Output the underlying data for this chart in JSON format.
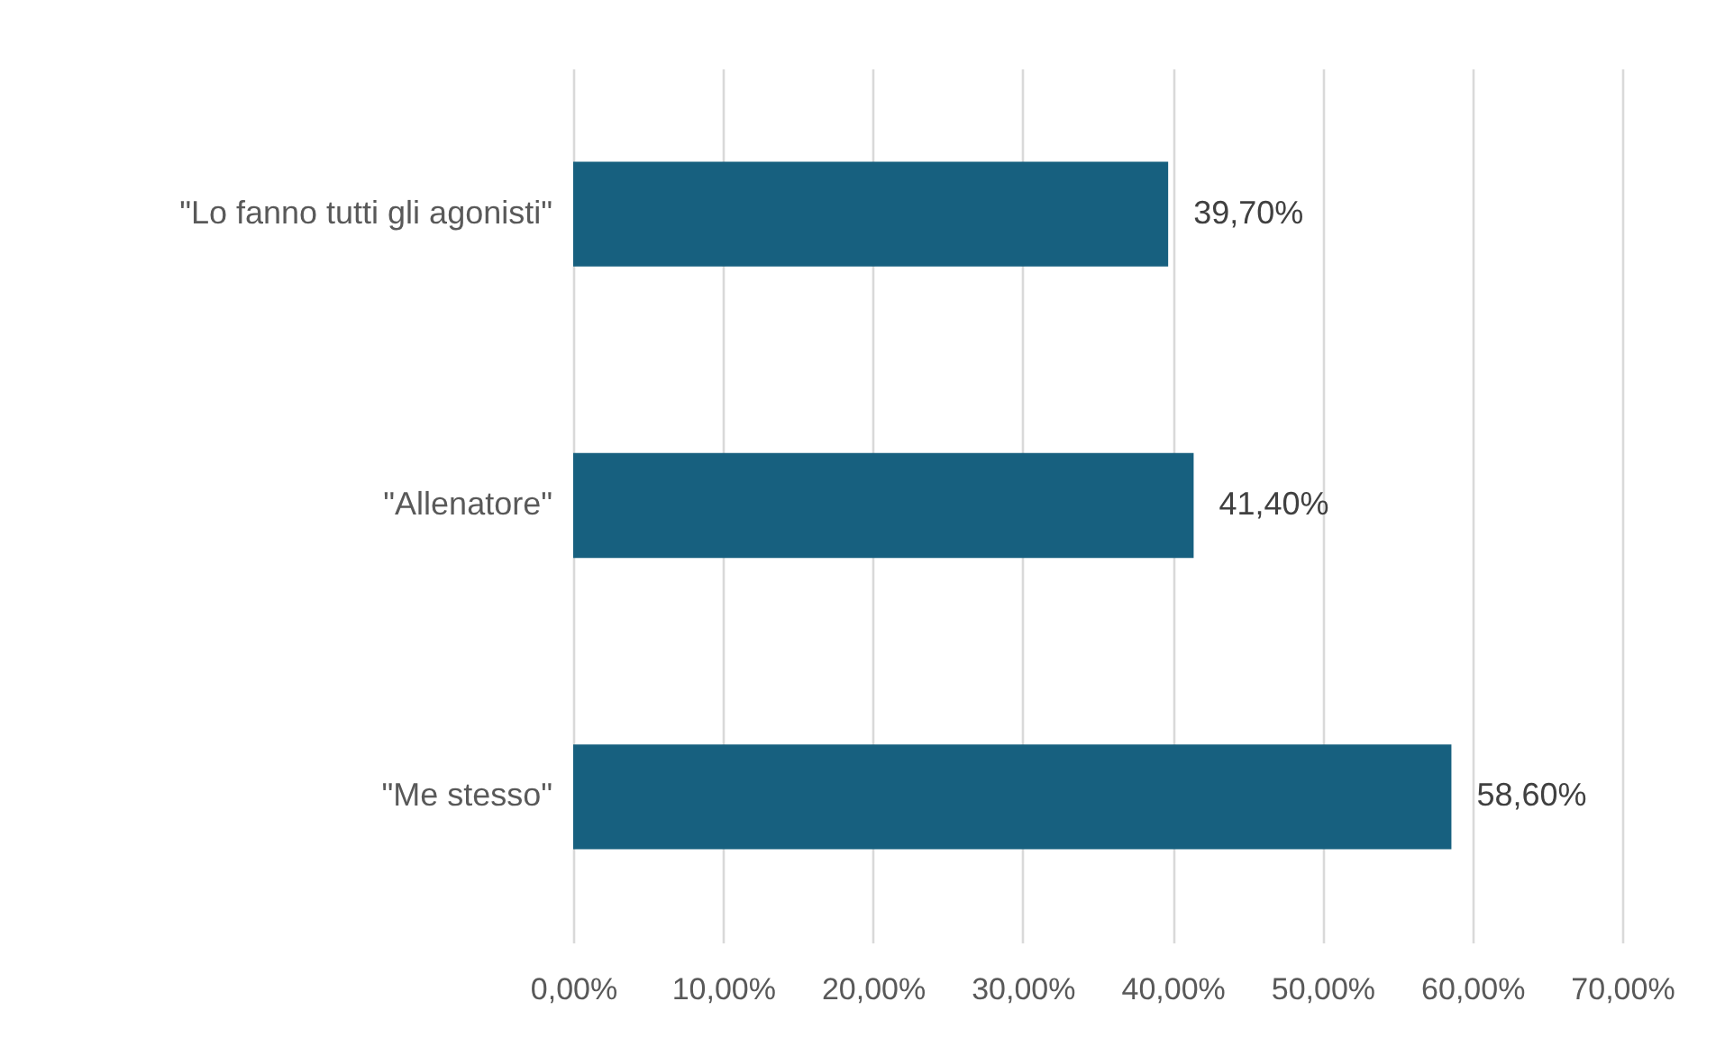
{
  "chart_data": {
    "type": "bar",
    "orientation": "horizontal",
    "categories": [
      "\"Lo fanno tutti gli agonisti\"",
      "\"Allenatore\"",
      "\"Me stesso\""
    ],
    "values": [
      39.7,
      41.4,
      58.6
    ],
    "value_labels": [
      "39,70%",
      "41,40%",
      "58,60%"
    ],
    "color": "#17607f",
    "xlim": [
      0,
      70
    ],
    "xticks": [
      {
        "value": 0,
        "label": "0,00%"
      },
      {
        "value": 10,
        "label": "10,00%"
      },
      {
        "value": 20,
        "label": "20,00%"
      },
      {
        "value": 30,
        "label": "30,00%"
      },
      {
        "value": 40,
        "label": "40,00%"
      },
      {
        "value": 50,
        "label": "50,00%"
      },
      {
        "value": 60,
        "label": "60,00%"
      },
      {
        "value": 70,
        "label": "70,00%"
      }
    ],
    "grid": "x"
  }
}
